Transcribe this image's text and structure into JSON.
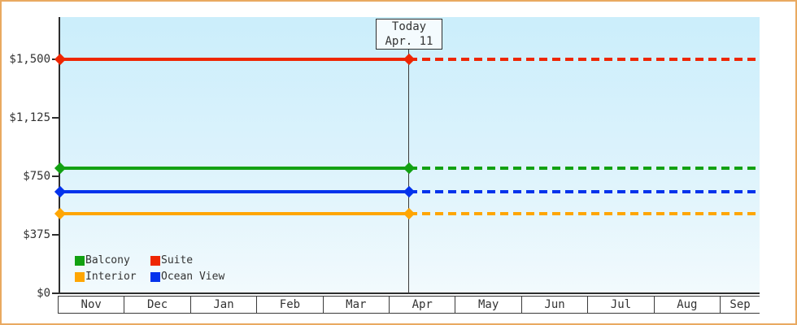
{
  "window": {
    "border_color": "#e9a961",
    "background": "#ffffff"
  },
  "today_box": {
    "line1": "Today",
    "line2": "Apr. 11"
  },
  "chart_data": {
    "type": "line",
    "title": "",
    "xlabel": "",
    "ylabel": "",
    "x_categories": [
      "Nov",
      "Dec",
      "Jan",
      "Feb",
      "Mar",
      "Apr",
      "May",
      "Jun",
      "Jul",
      "Aug",
      "Sep"
    ],
    "ylim": [
      0,
      1500
    ],
    "y_ticks": [
      {
        "label": "$0",
        "value": 0
      },
      {
        "label": "$375",
        "value": 375
      },
      {
        "label": "$750",
        "value": 750
      },
      {
        "label": "$1,125",
        "value": 1125
      },
      {
        "label": "$1,500",
        "value": 1500
      }
    ],
    "series": [
      {
        "name": "Suite",
        "color": "#ee2602",
        "value": 1500,
        "style": "solid-then-dotted"
      },
      {
        "name": "Balcony",
        "color": "#12a112",
        "value": 800,
        "style": "solid-then-dotted"
      },
      {
        "name": "Ocean View",
        "color": "#0433ec",
        "value": 650,
        "style": "solid-then-dotted"
      },
      {
        "name": "Interior",
        "color": "#ffa603",
        "value": 510,
        "style": "solid-then-dotted"
      }
    ],
    "legend_order": [
      "Balcony",
      "Suite",
      "Interior",
      "Ocean View"
    ],
    "legend_position": "inside-bottom-left",
    "grid": "off",
    "annotation": {
      "label": "Today",
      "date": "Apr. 11"
    },
    "notes": "Flat price lines: solid segment left of the today marker, dotted segment right of it; diamond markers at the y-axis and at the today line."
  }
}
